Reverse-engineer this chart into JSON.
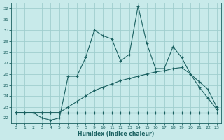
{
  "xlabel": "Humidex (Indice chaleur)",
  "bg_color": "#c8eaea",
  "grid_color": "#a0cece",
  "line_color": "#1a6060",
  "xlim": [
    -0.5,
    23.5
  ],
  "ylim": [
    21.5,
    32.5
  ],
  "yticks": [
    22,
    23,
    24,
    25,
    26,
    27,
    28,
    29,
    30,
    31,
    32
  ],
  "xticks": [
    0,
    1,
    2,
    3,
    4,
    5,
    6,
    7,
    8,
    9,
    10,
    11,
    12,
    13,
    14,
    15,
    16,
    17,
    18,
    19,
    20,
    21,
    22,
    23
  ],
  "line1_y": [
    22.5,
    22.5,
    22.5,
    22.5,
    22.5,
    22.5,
    22.5,
    22.5,
    22.5,
    22.5,
    22.5,
    22.5,
    22.5,
    22.5,
    22.5,
    22.5,
    22.5,
    22.5,
    22.5,
    22.5,
    22.5,
    22.5,
    22.5,
    22.5
  ],
  "line2_y": [
    22.5,
    22.5,
    22.5,
    22.5,
    22.5,
    22.5,
    23.0,
    23.5,
    24.0,
    24.5,
    24.8,
    25.1,
    25.4,
    25.6,
    25.8,
    26.0,
    26.2,
    26.3,
    26.5,
    26.6,
    26.0,
    25.3,
    24.6,
    23.0
  ],
  "line3_y": [
    22.5,
    22.5,
    22.5,
    22.0,
    21.8,
    22.0,
    25.8,
    25.8,
    27.5,
    30.0,
    29.5,
    29.2,
    27.2,
    27.8,
    32.2,
    28.8,
    26.5,
    26.5,
    28.5,
    27.5,
    26.0,
    24.8,
    23.8,
    22.8
  ]
}
